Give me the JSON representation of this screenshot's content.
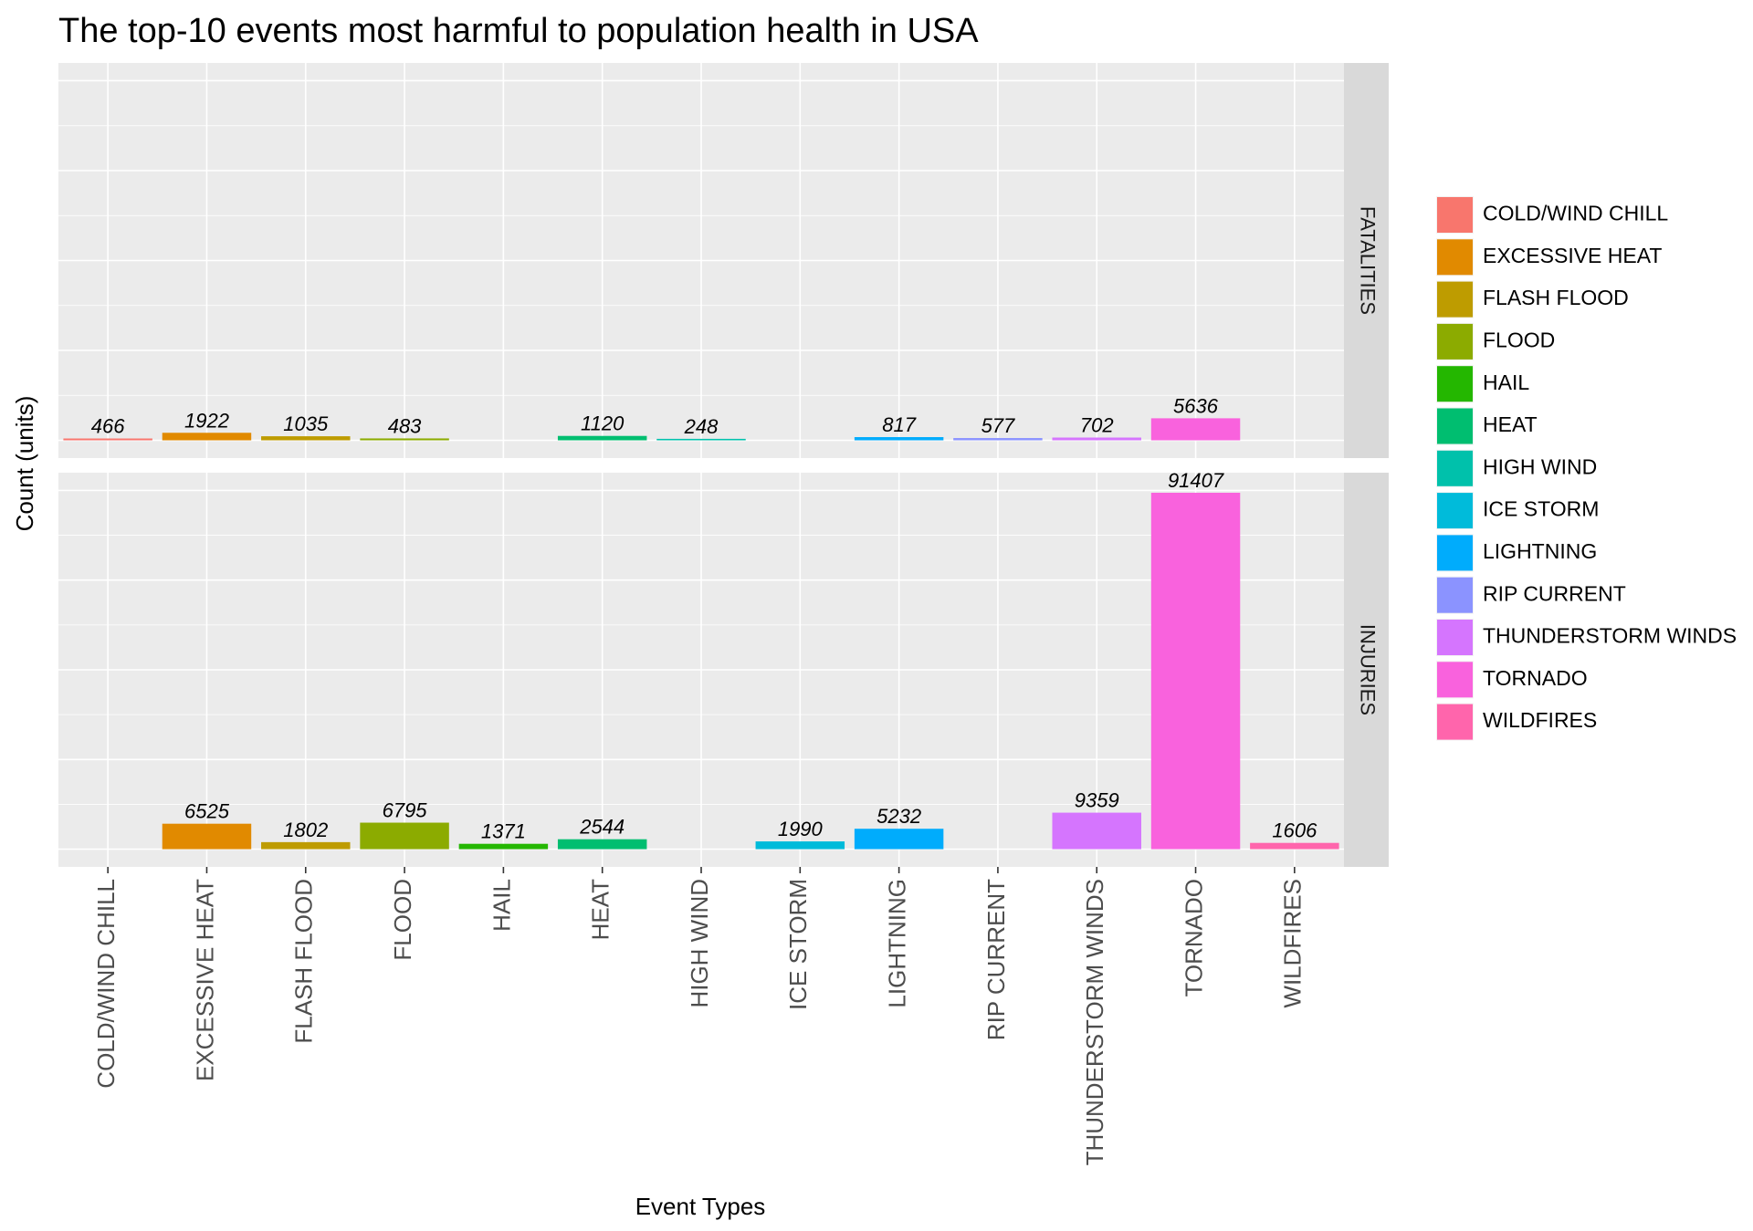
{
  "chart_data": {
    "type": "bar",
    "title": "The top-10 events most harmful to population health in USA",
    "xlabel": "Event Types",
    "ylabel": "Count (units)",
    "categories": [
      "COLD/WIND CHILL",
      "EXCESSIVE HEAT",
      "FLASH FLOOD",
      "FLOOD",
      "HAIL",
      "HEAT",
      "HIGH WIND",
      "ICE STORM",
      "LIGHTNING",
      "RIP CURRENT",
      "THUNDERSTORM WINDS",
      "TORNADO",
      "WILDFIRES"
    ],
    "facets": [
      {
        "label": "FATALITIES",
        "values": [
          466,
          1922,
          1035,
          483,
          null,
          1120,
          248,
          null,
          817,
          577,
          702,
          5636,
          null
        ],
        "ylim": [
          0,
          92000
        ]
      },
      {
        "label": "INJURIES",
        "values": [
          null,
          6525,
          1802,
          6795,
          1371,
          2544,
          null,
          1990,
          5232,
          null,
          9359,
          91407,
          1606
        ],
        "ylim": [
          0,
          92000
        ]
      }
    ],
    "legend": {
      "position": "right",
      "entries": [
        "COLD/WIND CHILL",
        "EXCESSIVE HEAT",
        "FLASH FLOOD",
        "FLOOD",
        "HAIL",
        "HEAT",
        "HIGH WIND",
        "ICE STORM",
        "LIGHTNING",
        "RIP CURRENT",
        "THUNDERSTORM WINDS",
        "TORNADO",
        "WILDFIRES"
      ]
    },
    "colors": [
      "#F8766D",
      "#E18A00",
      "#BE9C00",
      "#8CAB00",
      "#24B700",
      "#00BE70",
      "#00C1AB",
      "#00BBDA",
      "#00ACFC",
      "#8B93FF",
      "#D575FE",
      "#F962DD",
      "#FF65AC"
    ],
    "panel_background": "#ebebeb",
    "strip_background": "#d9d9d9",
    "grid": true
  }
}
